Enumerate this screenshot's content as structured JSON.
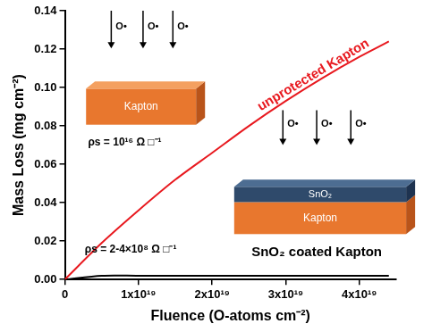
{
  "chart_data": {
    "type": "line",
    "x_label": "Fluence (O-atoms cm⁻²)",
    "y_label": "Mass Loss (mg cm⁻²)",
    "x": [
      0,
      5e+18,
      1e+19,
      1.5e+19,
      2e+19,
      2.5e+19,
      3e+19,
      3.5e+19,
      4e+19,
      4.4e+19
    ],
    "series": [
      {
        "name": "unprotected Kapton",
        "color": "#e8191f",
        "values": [
          0,
          0.019,
          0.036,
          0.052,
          0.066,
          0.08,
          0.093,
          0.105,
          0.116,
          0.124
        ]
      },
      {
        "name": "SnO₂ coated Kapton",
        "color": "#000000",
        "values": [
          0,
          0.002,
          0.002,
          0.002,
          0.002,
          0.002,
          0.002,
          0.002,
          0.002,
          0.002
        ]
      }
    ],
    "xlim": [
      0,
      4.5e+19
    ],
    "xticks": [
      0,
      {
        "value": 1e+19,
        "label": "1x10¹⁹"
      },
      {
        "value": 2e+19,
        "label": "2x10¹⁹"
      },
      {
        "value": 3e+19,
        "label": "3x10¹⁹"
      },
      {
        "value": 4e+19,
        "label": "4x10¹⁹"
      }
    ],
    "ylim": [
      0,
      0.14
    ],
    "yticks": [
      {
        "value": 0,
        "label": "0.00"
      },
      {
        "value": 0.02,
        "label": "0.02"
      },
      {
        "value": 0.04,
        "label": "0.04"
      },
      {
        "value": 0.06,
        "label": "0.06"
      },
      {
        "value": 0.08,
        "label": "0.08"
      },
      {
        "value": 0.1,
        "label": "0.10"
      },
      {
        "value": 0.12,
        "label": "0.12"
      },
      {
        "value": 0.14,
        "label": "0.14"
      }
    ],
    "grid": false,
    "annotations": [
      "O•",
      "O•",
      "O•",
      "Kapton",
      "ρs = 10¹⁶ Ω □⁻¹",
      "O•",
      "O•",
      "O•",
      "SnO₂",
      "Kapton",
      "ρs = 2-4×10⁸ Ω □⁻¹"
    ]
  }
}
